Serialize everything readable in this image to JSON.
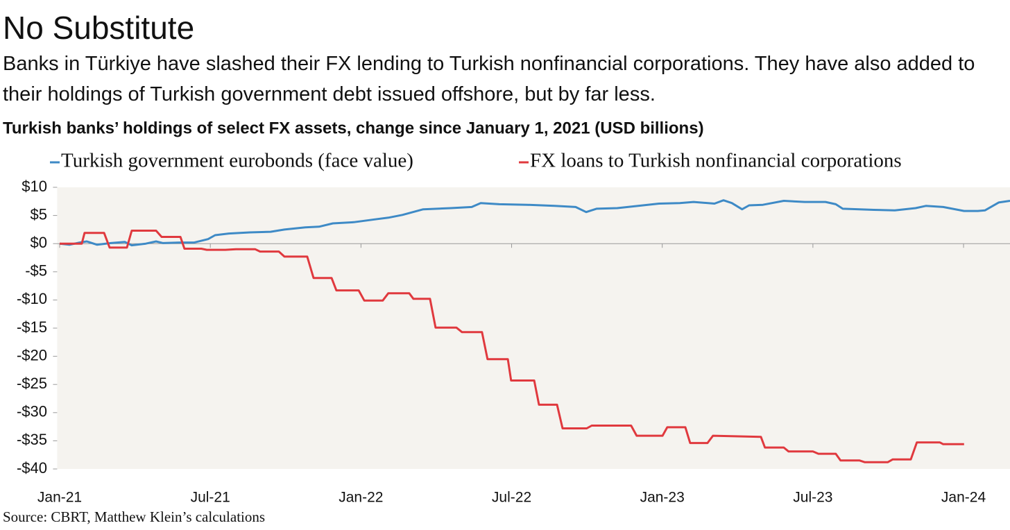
{
  "chart_data": {
    "type": "line",
    "title": "No Substitute",
    "subtitle": "Banks in Türkiye have slashed their FX lending to Turkish nonfinancial corporations. They have also added to their holdings of Turkish government debt issued offshore, but by far less.",
    "chart_title": "Turkish banks’ holdings of select FX assets, change since January 1, 2021 (USD billions)",
    "source": "Source: CBRT, Matthew Klein’s calculations",
    "xlim": [
      -0.1,
      37.85
    ],
    "xticks": [
      {
        "value": 0,
        "label": "Jan-21"
      },
      {
        "value": 6,
        "label": "Jul-21"
      },
      {
        "value": 12,
        "label": "Jan-22"
      },
      {
        "value": 18,
        "label": "Jul-22"
      },
      {
        "value": 24,
        "label": "Jan-23"
      },
      {
        "value": 30,
        "label": "Jul-23"
      },
      {
        "value": 36,
        "label": "Jan-24"
      }
    ],
    "ylim": [
      -40,
      10
    ],
    "yticks": [
      {
        "value": 10,
        "label": "$10"
      },
      {
        "value": 5,
        "label": "$5"
      },
      {
        "value": 0,
        "label": "$0"
      },
      {
        "value": -5,
        "label": "-$5"
      },
      {
        "value": -10,
        "label": "-$10"
      },
      {
        "value": -15,
        "label": "-$15"
      },
      {
        "value": -20,
        "label": "-$20"
      },
      {
        "value": -25,
        "label": "-$25"
      },
      {
        "value": -30,
        "label": "-$30"
      },
      {
        "value": -35,
        "label": "-$35"
      },
      {
        "value": -40,
        "label": "-$40"
      }
    ],
    "grid": false,
    "legend": "top",
    "series": [
      {
        "name": "Turkish government eurobonds (face value)",
        "color": "#3e8ac6",
        "x": [
          0,
          0.39,
          0.8,
          1.08,
          1.49,
          2.04,
          2.6,
          2.87,
          3.43,
          3.84,
          4.12,
          4.81,
          5.36,
          5.64,
          5.91,
          6.19,
          6.74,
          7.57,
          8.4,
          8.95,
          9.78,
          10.33,
          10.88,
          11.71,
          12.54,
          13.09,
          13.65,
          14.48,
          15.58,
          16.41,
          16.77,
          17.51,
          18.62,
          19.72,
          20.55,
          20.97,
          21.38,
          22.21,
          23.04,
          23.87,
          24.7,
          25.25,
          26.08,
          26.44,
          26.77,
          27.18,
          27.46,
          28.01,
          28.84,
          29.67,
          30.5,
          30.91,
          31.19,
          32.43,
          33.26,
          34.09,
          34.5,
          35.19,
          36.02,
          36.57,
          36.85,
          37.4,
          37.85
        ],
        "values": [
          0,
          -0.2,
          0.2,
          0.4,
          -0.2,
          0.1,
          0.3,
          -0.3,
          0,
          0.4,
          0.1,
          0.2,
          0.2,
          0.5,
          0.8,
          1.5,
          1.8,
          2,
          2.1,
          2.5,
          2.9,
          3,
          3.6,
          3.8,
          4.3,
          4.6,
          5.1,
          6.1,
          6.3,
          6.5,
          7.2,
          7,
          6.9,
          6.7,
          6.5,
          5.6,
          6.2,
          6.3,
          6.7,
          7.1,
          7.2,
          7.4,
          7.1,
          7.7,
          7.2,
          6.1,
          6.8,
          6.9,
          7.6,
          7.4,
          7.4,
          7,
          6.2,
          6,
          5.9,
          6.3,
          6.7,
          6.5,
          5.8,
          5.8,
          5.9,
          7.3,
          7.6
        ]
      },
      {
        "name": "FX loans to Turkish nonfinancial corporations",
        "color": "#e0393e",
        "x": [
          0,
          0.88,
          0.99,
          1.77,
          1.99,
          2.68,
          2.87,
          3.84,
          4.06,
          4.81,
          4.97,
          5.64,
          5.86,
          6.6,
          7.02,
          7.79,
          7.98,
          8.73,
          8.95,
          9.86,
          10.11,
          10.83,
          11.02,
          11.91,
          12.13,
          12.87,
          13.09,
          13.92,
          14.09,
          14.75,
          14.97,
          15.8,
          16.02,
          16.82,
          17.04,
          17.85,
          17.98,
          18.9,
          19.09,
          19.81,
          20.03,
          20.99,
          21.19,
          22.76,
          22.98,
          24.01,
          24.2,
          24.92,
          25.11,
          25.8,
          26.02,
          27.93,
          28.09,
          28.84,
          29.03,
          30,
          30.22,
          30.91,
          31.1,
          31.86,
          32.07,
          32.98,
          33.18,
          33.9,
          34.14,
          35.06,
          35.19,
          36.02
        ],
        "values": [
          0,
          0,
          1.9,
          1.9,
          -0.7,
          -0.7,
          2.3,
          2.3,
          1.2,
          1.2,
          -0.9,
          -0.9,
          -1.1,
          -1.1,
          -1,
          -1,
          -1.4,
          -1.4,
          -2.3,
          -2.3,
          -6.1,
          -6.1,
          -8.3,
          -8.3,
          -10.1,
          -10.1,
          -8.8,
          -8.8,
          -9.8,
          -9.8,
          -14.9,
          -14.9,
          -15.7,
          -15.7,
          -20.5,
          -20.5,
          -24.3,
          -24.3,
          -28.6,
          -28.6,
          -32.8,
          -32.8,
          -32.3,
          -32.3,
          -34.1,
          -34.1,
          -32.6,
          -32.6,
          -35.4,
          -35.4,
          -34.1,
          -34.3,
          -36.2,
          -36.2,
          -36.9,
          -36.9,
          -37.3,
          -37.3,
          -38.5,
          -38.5,
          -38.8,
          -38.8,
          -38.3,
          -38.3,
          -35.3,
          -35.3,
          -35.6,
          -35.6
        ]
      }
    ]
  }
}
